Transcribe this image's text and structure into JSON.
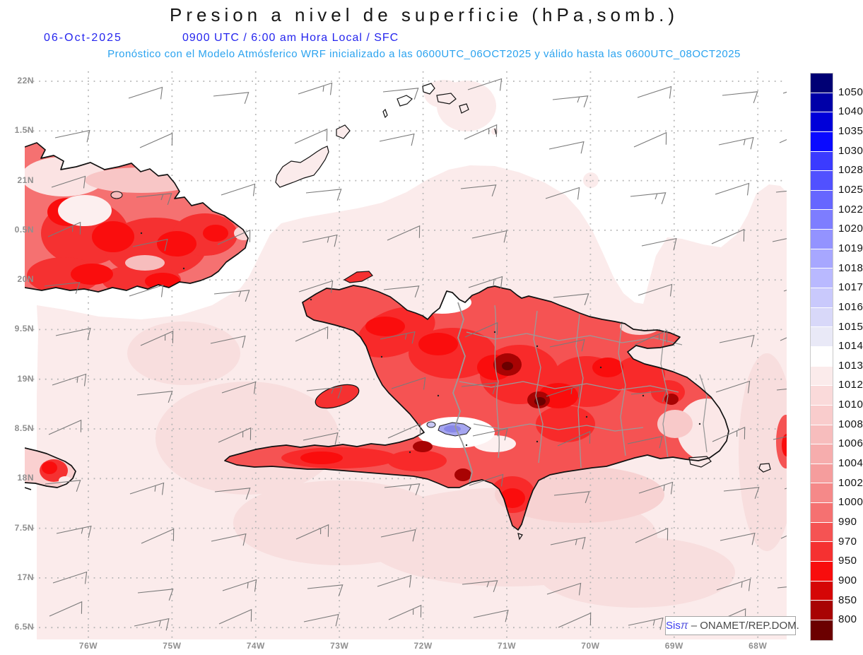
{
  "header": {
    "title": "Presion a nivel de superficie (hPa,somb.)",
    "date": "06-Oct-2025",
    "time_line": "0900 UTC / 6:00 am Hora Local / SFC",
    "subtitle": "Pronóstico con el Modelo Atmósferico WRF inicializado a las 0600UTC_06OCT2025 y válido hasta las  0600UTC_08OCT2025"
  },
  "axes": {
    "lat_labels": [
      "22N",
      "1.5N",
      "21N",
      "0.5N",
      "20N",
      "9.5N",
      "19N",
      "8.5N",
      "18N",
      "7.5N",
      "17N",
      "6.5N"
    ],
    "lon_labels": [
      "76W",
      "75W",
      "74W",
      "73W",
      "72W",
      "71W",
      "70W",
      "69W",
      "68W"
    ]
  },
  "colorbar": {
    "tick_labels": [
      "1050",
      "1040",
      "1035",
      "1030",
      "1028",
      "1025",
      "1022",
      "1020",
      "1019",
      "1018",
      "1017",
      "1016",
      "1015",
      "1014",
      "1013",
      "1012",
      "1010",
      "1008",
      "1006",
      "1004",
      "1002",
      "1000",
      "990",
      "970",
      "950",
      "900",
      "850",
      "800"
    ],
    "segment_colors": [
      "#000074",
      "#0000A8",
      "#0000D9",
      "#0A0AFF",
      "#3B3BFF",
      "#5151FF",
      "#6666FF",
      "#7D7DFF",
      "#9393FF",
      "#A7A7FF",
      "#B9B9FF",
      "#C9C9FC",
      "#D8D8F9",
      "#E9E9F7",
      "#FFFFFF",
      "#FBEBEB",
      "#FADADA",
      "#F9CCCC",
      "#F7BDBD",
      "#F6ADAD",
      "#F59D9D",
      "#F58989",
      "#F57171",
      "#F55353",
      "#F53131",
      "#F80D0D",
      "#D50606",
      "#A80303",
      "#6B0000"
    ]
  },
  "watermark": {
    "brand": "Sis",
    "pi": "π",
    "separator": "–",
    "org": "ONAMET/REP.DOM."
  },
  "style_colors": {
    "title_text": "#161616",
    "date_text": "#2525EE",
    "subtitle_text": "#2BA3EF",
    "axis_text": "#8f8f8f",
    "ocean_light_pink": "#FBEBEB",
    "coastline": "#111111",
    "province_border": "#9a9a9a",
    "wind_barb": "#7a7a7a",
    "grid_dots": "#b5b5b5",
    "lake_fill": "#A6A6F0"
  }
}
